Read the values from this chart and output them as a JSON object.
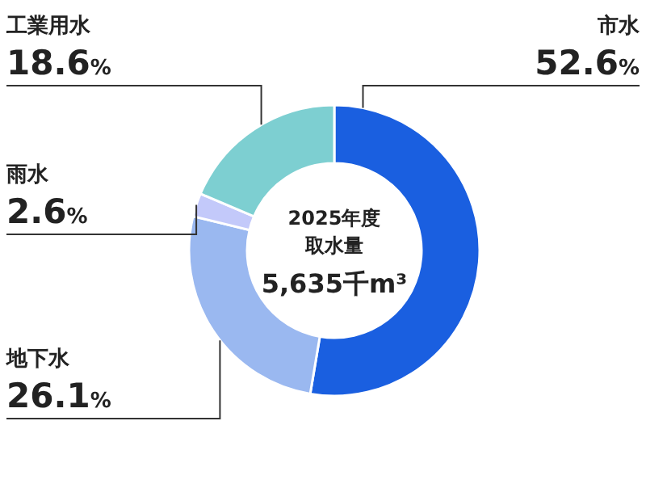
{
  "chart_data": {
    "type": "donut",
    "categories": [
      "市水",
      "地下水",
      "雨水",
      "工業用水"
    ],
    "values": [
      52.6,
      26.1,
      2.6,
      18.6
    ],
    "colors": [
      "#1a5fe0",
      "#9ab8f0",
      "#c3c9fa",
      "#7dcfd1"
    ],
    "value_labels": [
      "52.6%",
      "26.1%",
      "2.6%",
      "18.6%"
    ],
    "annotations": [
      "2025年度",
      "取水量",
      "5,635千m³"
    ]
  }
}
